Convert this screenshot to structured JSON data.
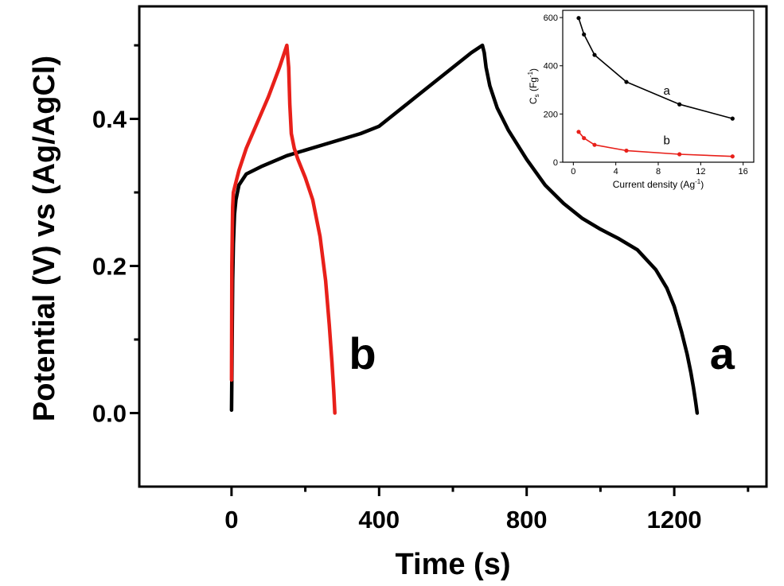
{
  "chart_data": [
    {
      "type": "line",
      "xlabel": "Time (s)",
      "ylabel": "Potential (V) vs (Ag/AgCl)",
      "xlim": [
        -250,
        1450
      ],
      "ylim": [
        -0.1,
        0.553
      ],
      "xticks": [
        {
          "v": 0,
          "label": "0"
        },
        {
          "v": 400,
          "label": "400"
        },
        {
          "v": 800,
          "label": "800"
        },
        {
          "v": 1200,
          "label": "1200"
        }
      ],
      "yticks": [
        {
          "v": 0.0,
          "label": "0.0"
        },
        {
          "v": 0.2,
          "label": "0.2"
        },
        {
          "v": 0.4,
          "label": "0.4"
        }
      ],
      "grid": false,
      "series": [
        {
          "name": "a",
          "color": "#000000",
          "x": [
            0,
            1,
            2,
            3,
            5,
            8,
            12,
            20,
            40,
            80,
            150,
            250,
            350,
            400,
            450,
            500,
            550,
            600,
            650,
            680,
            685,
            690,
            700,
            720,
            750,
            800,
            850,
            900,
            950,
            1000,
            1050,
            1100,
            1150,
            1180,
            1200,
            1220,
            1235,
            1245,
            1252,
            1258,
            1262
          ],
          "y": [
            0.004,
            0.05,
            0.12,
            0.18,
            0.23,
            0.27,
            0.29,
            0.31,
            0.325,
            0.335,
            0.35,
            0.365,
            0.38,
            0.39,
            0.41,
            0.43,
            0.45,
            0.47,
            0.49,
            0.5,
            0.49,
            0.47,
            0.445,
            0.415,
            0.385,
            0.345,
            0.31,
            0.285,
            0.265,
            0.25,
            0.237,
            0.222,
            0.195,
            0.17,
            0.145,
            0.11,
            0.08,
            0.055,
            0.035,
            0.015,
            0.0
          ]
        },
        {
          "name": "b",
          "color": "#e8201a",
          "x": [
            0,
            1,
            3,
            5,
            10,
            20,
            40,
            70,
            100,
            130,
            150,
            155,
            158,
            162,
            170,
            180,
            200,
            220,
            240,
            255,
            265,
            272,
            277,
            280
          ],
          "y": [
            0.045,
            0.2,
            0.28,
            0.3,
            0.31,
            0.33,
            0.36,
            0.395,
            0.43,
            0.47,
            0.5,
            0.47,
            0.42,
            0.38,
            0.36,
            0.345,
            0.32,
            0.29,
            0.24,
            0.18,
            0.12,
            0.07,
            0.03,
            0.0
          ]
        }
      ],
      "labels": [
        {
          "text": "a",
          "x": 1330,
          "y": 0.06
        },
        {
          "text": "b",
          "x": 355,
          "y": 0.06
        }
      ]
    },
    {
      "type": "line",
      "xlabel": "Current density (Ag",
      "xlabel_sup": "-1",
      "ylabel": "C",
      "ylabel_sub": "s",
      "ylabel_unit": "(Fg",
      "ylabel_sup": "-1",
      "xlim": [
        -1,
        17
      ],
      "ylim": [
        0,
        630
      ],
      "xticks": [
        {
          "v": 0,
          "label": "0"
        },
        {
          "v": 4,
          "label": "4"
        },
        {
          "v": 8,
          "label": "8"
        },
        {
          "v": 12,
          "label": "12"
        },
        {
          "v": 16,
          "label": "16"
        }
      ],
      "yticks": [
        {
          "v": 0,
          "label": "0"
        },
        {
          "v": 200,
          "label": "200"
        },
        {
          "v": 400,
          "label": "400"
        },
        {
          "v": 600,
          "label": "600"
        }
      ],
      "grid": false,
      "series": [
        {
          "name": "a",
          "color": "#000000",
          "x": [
            0.5,
            1,
            2,
            5,
            10,
            15
          ],
          "y": [
            598,
            530,
            445,
            333,
            240,
            181
          ]
        },
        {
          "name": "b",
          "color": "#e8201a",
          "x": [
            0.5,
            1,
            2,
            5,
            10,
            15
          ],
          "y": [
            126,
            100,
            72,
            48,
            33,
            24
          ]
        }
      ],
      "labels": [
        {
          "text": "a",
          "x": 8.8,
          "y": 280
        },
        {
          "text": "b",
          "x": 8.8,
          "y": 75
        }
      ]
    }
  ]
}
